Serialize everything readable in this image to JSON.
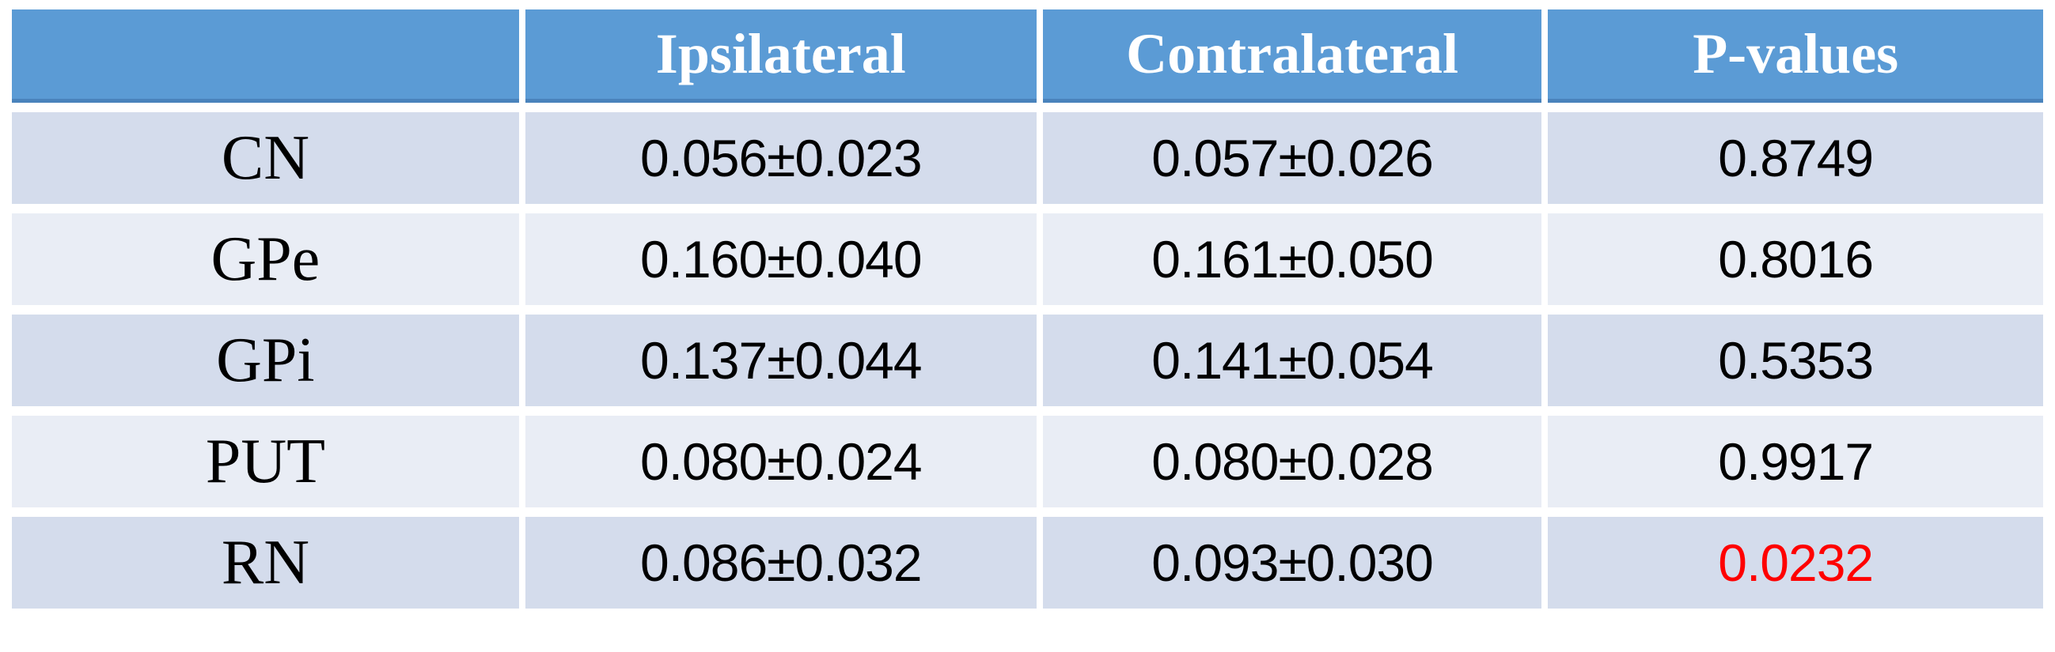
{
  "table": {
    "columns": [
      "",
      "Ipsilateral",
      "Contralateral",
      "P-values"
    ],
    "rows": [
      {
        "label": "CN",
        "ipsilateral": "0.056±0.023",
        "contralateral": "0.057±0.026",
        "p_value": "0.8749",
        "p_value_significant": false
      },
      {
        "label": "GPe",
        "ipsilateral": "0.160±0.040",
        "contralateral": "0.161±0.050",
        "p_value": "0.8016",
        "p_value_significant": false
      },
      {
        "label": "GPi",
        "ipsilateral": "0.137±0.044",
        "contralateral": "0.141±0.054",
        "p_value": "0.5353",
        "p_value_significant": false
      },
      {
        "label": "PUT",
        "ipsilateral": "0.080±0.024",
        "contralateral": "0.080±0.028",
        "p_value": "0.9917",
        "p_value_significant": false
      },
      {
        "label": "RN",
        "ipsilateral": "0.086±0.032",
        "contralateral": "0.093±0.030",
        "p_value": "0.0232",
        "p_value_significant": true
      }
    ]
  },
  "colors": {
    "header_bg": "#5B9BD5",
    "header_border_bottom": "#4A83BC",
    "row_odd_bg": "#D4DCEC",
    "row_even_bg": "#E9EDF5",
    "significant_p_color": "#FF0000",
    "text_color": "#000000",
    "header_text_color": "#FFFFFF"
  },
  "chart_data": {
    "type": "table",
    "title": "",
    "columns": [
      "",
      "Ipsilateral",
      "Contralateral",
      "P-values"
    ],
    "row_labels": [
      "CN",
      "GPe",
      "GPi",
      "PUT",
      "RN"
    ],
    "cells": [
      [
        "CN",
        "0.056±0.023",
        "0.057±0.026",
        "0.8749"
      ],
      [
        "GPe",
        "0.160±0.040",
        "0.161±0.050",
        "0.8016"
      ],
      [
        "GPi",
        "0.137±0.044",
        "0.141±0.054",
        "0.5353"
      ],
      [
        "PUT",
        "0.080±0.024",
        "0.080±0.028",
        "0.9917"
      ],
      [
        "RN",
        "0.086±0.032",
        "0.093±0.030",
        "0.0232"
      ]
    ],
    "ipsilateral_mean": [
      0.056,
      0.16,
      0.137,
      0.08,
      0.086
    ],
    "ipsilateral_sd": [
      0.023,
      0.04,
      0.044,
      0.024,
      0.032
    ],
    "contralateral_mean": [
      0.057,
      0.161,
      0.141,
      0.08,
      0.093
    ],
    "contralateral_sd": [
      0.026,
      0.05,
      0.054,
      0.028,
      0.03
    ],
    "p_values": [
      0.8749,
      0.8016,
      0.5353,
      0.9917,
      0.0232
    ],
    "significant_rows": [
      "RN"
    ],
    "layout_hints": "banded rows, blue header band, significant p-value shown in red"
  }
}
